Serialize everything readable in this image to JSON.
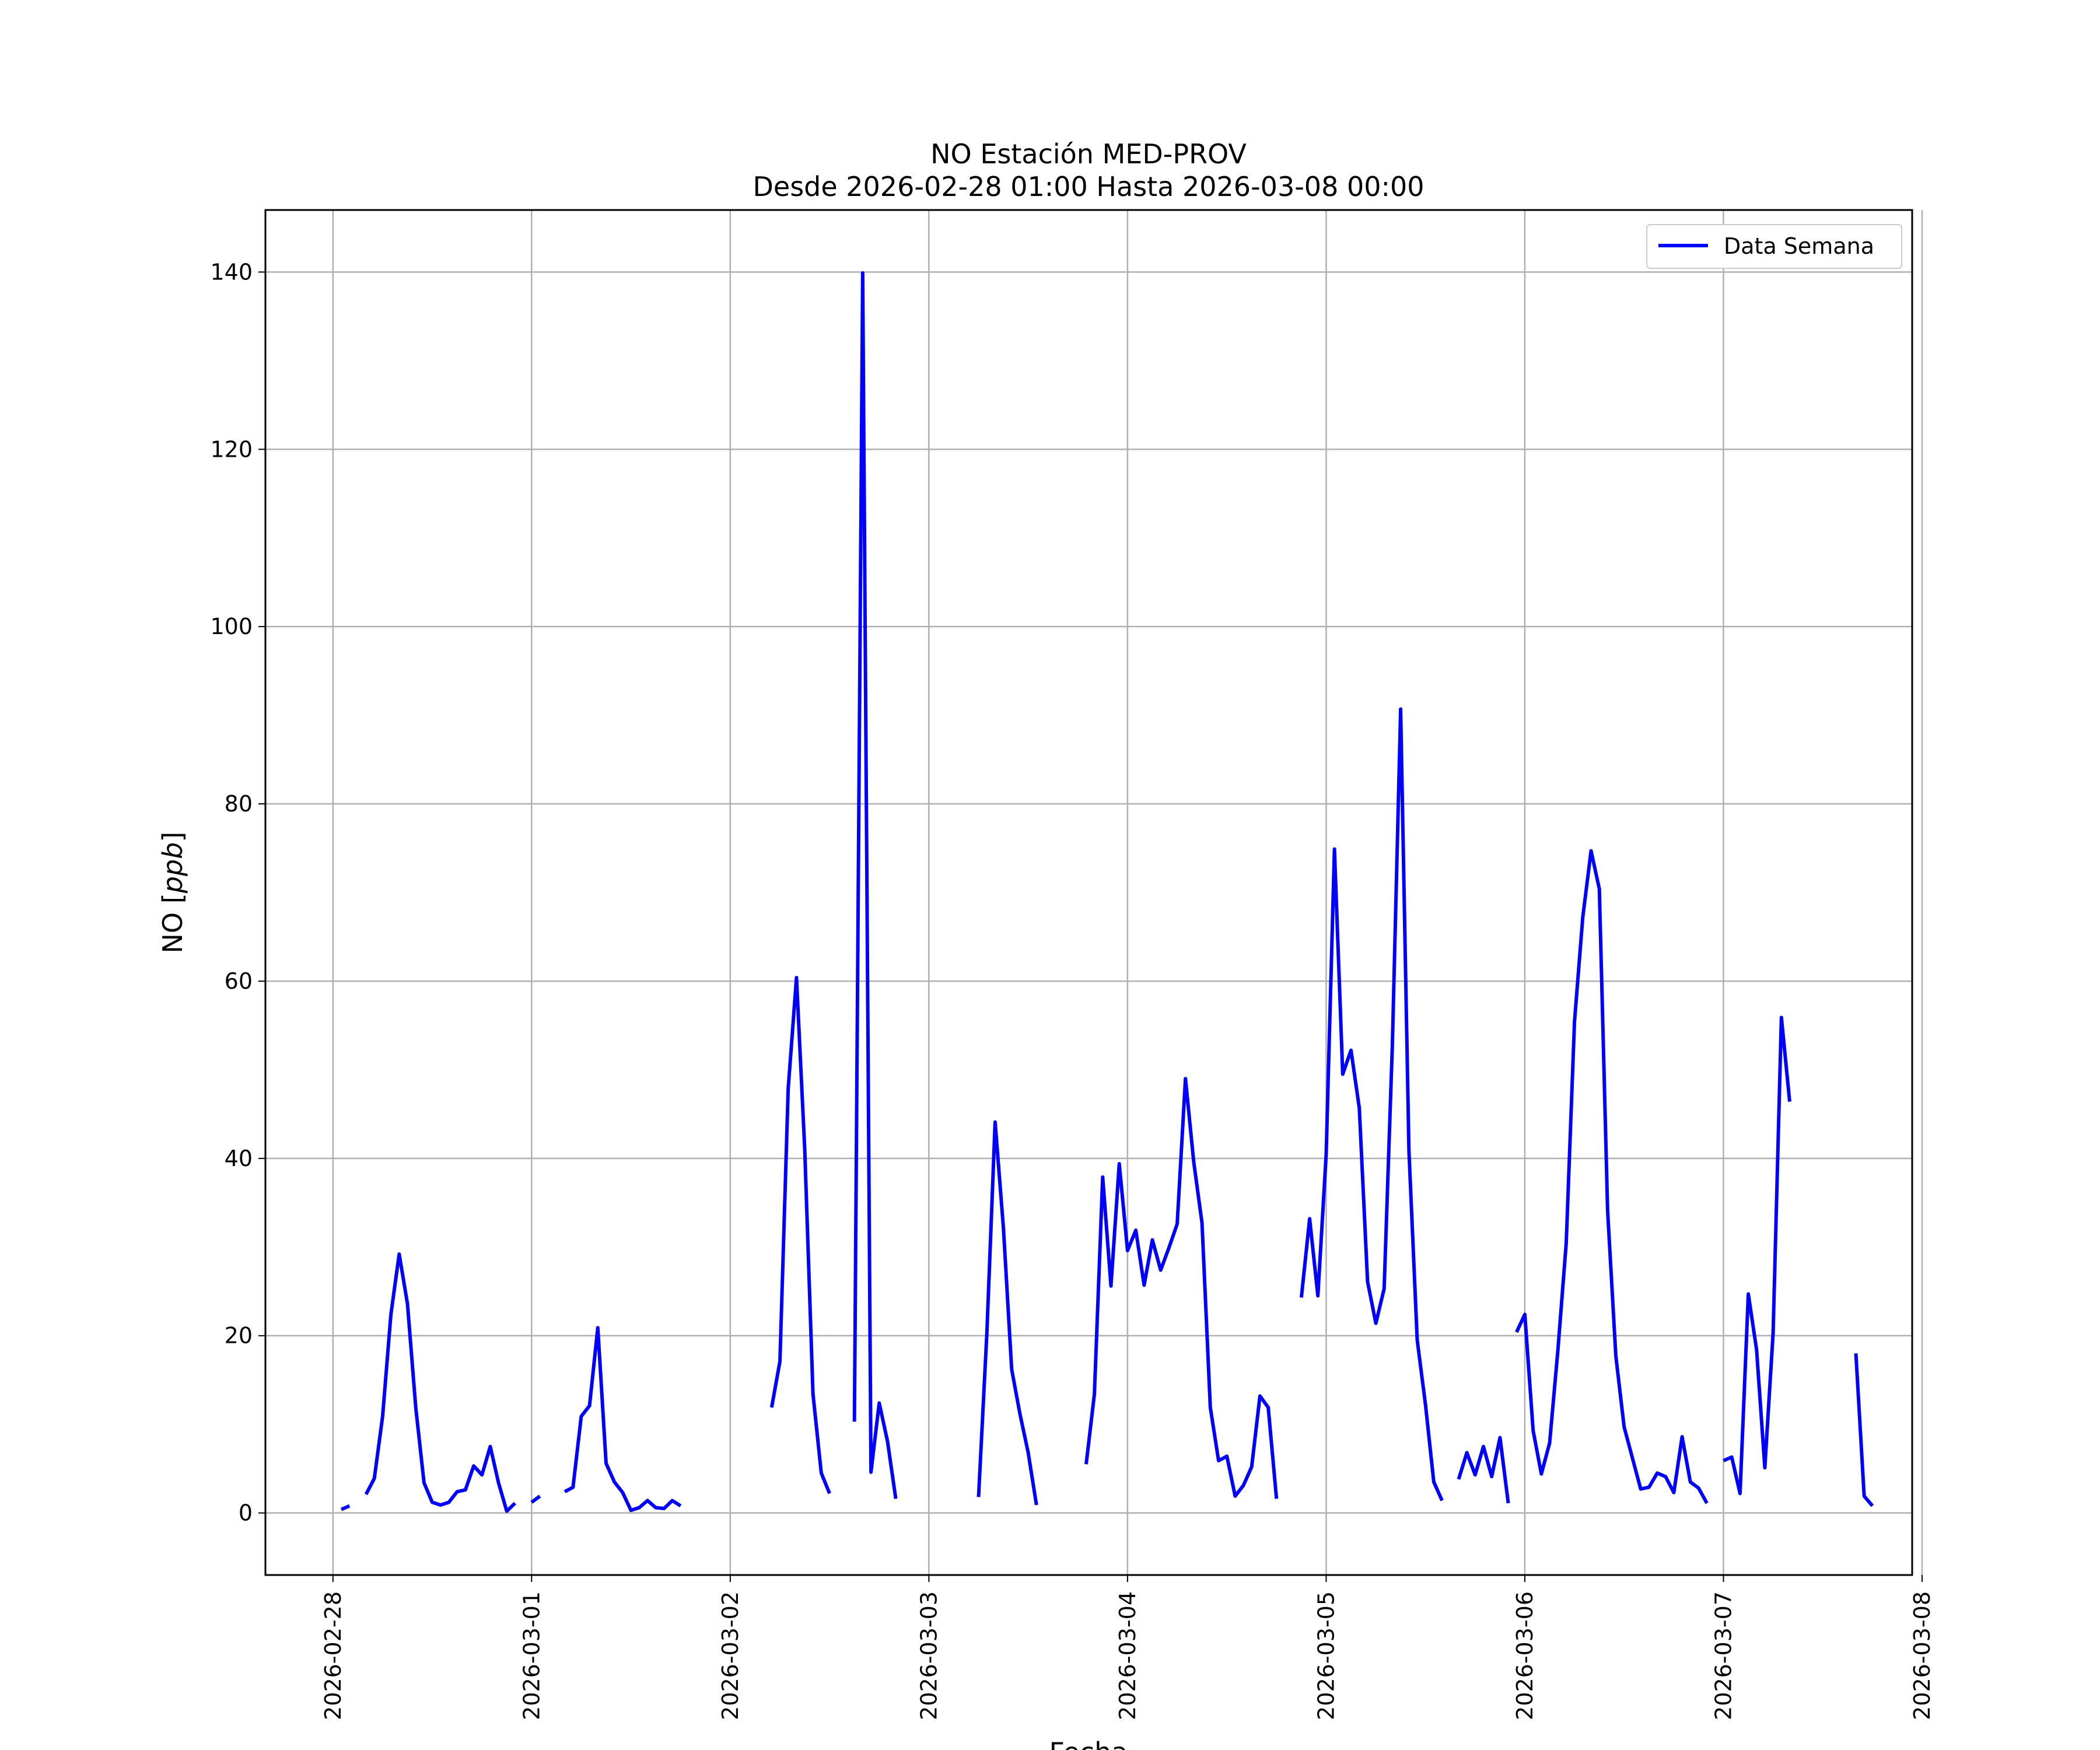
{
  "chart_data": {
    "type": "line",
    "title": "NO Estación MED-PROV",
    "subtitle": "Desde 2026-02-28 01:00 Hasta 2026-03-08 00:00",
    "xlabel": "Fecha",
    "ylabel": "NO [ppb]",
    "ylabel_prefix": "NO [",
    "ylabel_unit": "ppb",
    "ylabel_suffix": "]",
    "x_start": "2026-02-28",
    "xlim": [
      -0.34,
      7.95
    ],
    "ylim": [
      -7,
      147
    ],
    "x_ticks": [
      "2026-02-28",
      "2026-03-01",
      "2026-03-02",
      "2026-03-03",
      "2026-03-04",
      "2026-03-05",
      "2026-03-06",
      "2026-03-07",
      "2026-03-08"
    ],
    "y_ticks": [
      0,
      20,
      40,
      60,
      80,
      100,
      120,
      140
    ],
    "grid": true,
    "legend_position": "upper right",
    "series": [
      {
        "name": "Data Semana",
        "color": "#0000ff",
        "segments": [
          [
            [
              "2026-02-28 01:00",
              0.4
            ],
            [
              "2026-02-28 02:00",
              0.8
            ]
          ],
          [
            [
              "2026-02-28 04:00",
              2.1
            ],
            [
              "2026-02-28 05:00",
              3.9
            ],
            [
              "2026-02-28 06:00",
              10.9
            ],
            [
              "2026-02-28 07:00",
              22.4
            ],
            [
              "2026-02-28 08:00",
              29.2
            ],
            [
              "2026-02-28 09:00",
              23.6
            ],
            [
              "2026-02-28 10:00",
              11.9
            ],
            [
              "2026-02-28 11:00",
              3.4
            ],
            [
              "2026-02-28 12:00",
              1.2
            ],
            [
              "2026-02-28 13:00",
              0.9
            ],
            [
              "2026-02-28 14:00",
              1.2
            ],
            [
              "2026-02-28 15:00",
              2.4
            ],
            [
              "2026-02-28 16:00",
              2.6
            ],
            [
              "2026-02-28 17:00",
              5.3
            ],
            [
              "2026-02-28 18:00",
              4.3
            ],
            [
              "2026-02-28 19:00",
              7.5
            ],
            [
              "2026-02-28 20:00",
              3.4
            ],
            [
              "2026-02-28 21:00",
              0.2
            ],
            [
              "2026-02-28 22:00",
              1.1
            ]
          ],
          [
            [
              "2026-03-01 00:00",
              1.2
            ],
            [
              "2026-03-01 01:00",
              1.9
            ]
          ],
          [
            [
              "2026-03-01 04:00",
              2.4
            ],
            [
              "2026-03-01 05:00",
              2.9
            ],
            [
              "2026-03-01 06:00",
              10.9
            ],
            [
              "2026-03-01 07:00",
              12.1
            ],
            [
              "2026-03-01 08:00",
              20.9
            ],
            [
              "2026-03-01 09:00",
              5.6
            ],
            [
              "2026-03-01 10:00",
              3.5
            ],
            [
              "2026-03-01 11:00",
              2.3
            ],
            [
              "2026-03-01 12:00",
              0.3
            ],
            [
              "2026-03-01 13:00",
              0.6
            ],
            [
              "2026-03-01 14:00",
              1.4
            ],
            [
              "2026-03-01 15:00",
              0.6
            ],
            [
              "2026-03-01 16:00",
              0.5
            ],
            [
              "2026-03-01 17:00",
              1.4
            ],
            [
              "2026-03-01 18:00",
              0.8
            ]
          ],
          [
            [
              "2026-03-02 05:00",
              11.9
            ],
            [
              "2026-03-02 06:00",
              17.1
            ],
            [
              "2026-03-02 07:00",
              47.9
            ],
            [
              "2026-03-02 08:00",
              60.4
            ],
            [
              "2026-03-02 09:00",
              41.1
            ],
            [
              "2026-03-02 10:00",
              13.4
            ],
            [
              "2026-03-02 11:00",
              4.5
            ],
            [
              "2026-03-02 12:00",
              2.2
            ]
          ],
          [
            [
              "2026-03-02 15:00",
              10.3
            ],
            [
              "2026-03-02 16:00",
              139.9
            ],
            [
              "2026-03-02 17:00",
              4.6
            ],
            [
              "2026-03-02 18:00",
              12.4
            ],
            [
              "2026-03-02 19:00",
              8.1
            ],
            [
              "2026-03-02 20:00",
              1.6
            ]
          ],
          [
            [
              "2026-03-03 06:00",
              1.8
            ],
            [
              "2026-03-03 07:00",
              20.2
            ],
            [
              "2026-03-03 08:00",
              44.1
            ],
            [
              "2026-03-03 09:00",
              32.2
            ],
            [
              "2026-03-03 10:00",
              16.2
            ],
            [
              "2026-03-03 11:00",
              11.2
            ],
            [
              "2026-03-03 12:00",
              6.8
            ],
            [
              "2026-03-03 13:00",
              0.9
            ]
          ],
          [
            [
              "2026-03-03 19:00",
              5.5
            ],
            [
              "2026-03-03 20:00",
              13.4
            ],
            [
              "2026-03-03 21:00",
              37.9
            ],
            [
              "2026-03-03 22:00",
              25.6
            ],
            [
              "2026-03-03 23:00",
              39.4
            ],
            [
              "2026-03-04 00:00",
              29.6
            ],
            [
              "2026-03-04 01:00",
              31.9
            ],
            [
              "2026-03-04 02:00",
              25.7
            ],
            [
              "2026-03-04 03:00",
              30.8
            ],
            [
              "2026-03-04 04:00",
              27.4
            ],
            [
              "2026-03-04 05:00",
              29.9
            ],
            [
              "2026-03-04 06:00",
              32.6
            ],
            [
              "2026-03-04 07:00",
              49.0
            ],
            [
              "2026-03-04 08:00",
              39.6
            ],
            [
              "2026-03-04 09:00",
              32.7
            ],
            [
              "2026-03-04 10:00",
              11.9
            ],
            [
              "2026-03-04 11:00",
              5.9
            ],
            [
              "2026-03-04 12:00",
              6.4
            ],
            [
              "2026-03-04 13:00",
              1.9
            ],
            [
              "2026-03-04 14:00",
              3.1
            ],
            [
              "2026-03-04 15:00",
              5.2
            ],
            [
              "2026-03-04 16:00",
              13.2
            ],
            [
              "2026-03-04 17:00",
              11.9
            ],
            [
              "2026-03-04 18:00",
              1.6
            ]
          ],
          [
            [
              "2026-03-04 21:00",
              24.3
            ],
            [
              "2026-03-04 22:00",
              33.2
            ],
            [
              "2026-03-04 23:00",
              24.5
            ],
            [
              "2026-03-05 00:00",
              40.4
            ],
            [
              "2026-03-05 01:00",
              74.9
            ],
            [
              "2026-03-05 02:00",
              49.5
            ],
            [
              "2026-03-05 03:00",
              52.2
            ],
            [
              "2026-03-05 04:00",
              45.7
            ],
            [
              "2026-03-05 05:00",
              26.1
            ],
            [
              "2026-03-05 06:00",
              21.4
            ],
            [
              "2026-03-05 07:00",
              25.3
            ],
            [
              "2026-03-05 08:00",
              52.8
            ],
            [
              "2026-03-05 09:00",
              90.7
            ],
            [
              "2026-03-05 10:00",
              40.9
            ],
            [
              "2026-03-05 11:00",
              19.5
            ],
            [
              "2026-03-05 12:00",
              12.2
            ],
            [
              "2026-03-05 13:00",
              3.5
            ],
            [
              "2026-03-05 14:00",
              1.4
            ]
          ],
          [
            [
              "2026-03-05 16:00",
              3.8
            ],
            [
              "2026-03-05 17:00",
              6.8
            ],
            [
              "2026-03-05 18:00",
              4.3
            ],
            [
              "2026-03-05 19:00",
              7.5
            ],
            [
              "2026-03-05 20:00",
              4.1
            ],
            [
              "2026-03-05 21:00",
              8.5
            ],
            [
              "2026-03-05 22:00",
              1.1
            ]
          ],
          [
            [
              "2026-03-05 23:00",
              20.4
            ],
            [
              "2026-03-06 00:00",
              22.4
            ],
            [
              "2026-03-06 01:00",
              9.3
            ],
            [
              "2026-03-06 02:00",
              4.4
            ],
            [
              "2026-03-06 03:00",
              7.9
            ],
            [
              "2026-03-06 04:00",
              18.4
            ],
            [
              "2026-03-06 05:00",
              30.4
            ],
            [
              "2026-03-06 06:00",
              55.4
            ],
            [
              "2026-03-06 07:00",
              67.2
            ],
            [
              "2026-03-06 08:00",
              74.7
            ],
            [
              "2026-03-06 09:00",
              70.4
            ],
            [
              "2026-03-06 10:00",
              34.1
            ],
            [
              "2026-03-06 11:00",
              17.7
            ],
            [
              "2026-03-06 12:00",
              9.7
            ],
            [
              "2026-03-06 13:00",
              6.2
            ],
            [
              "2026-03-06 14:00",
              2.7
            ],
            [
              "2026-03-06 15:00",
              2.9
            ],
            [
              "2026-03-06 16:00",
              4.5
            ],
            [
              "2026-03-06 17:00",
              4.1
            ],
            [
              "2026-03-06 18:00",
              2.3
            ],
            [
              "2026-03-06 19:00",
              8.6
            ],
            [
              "2026-03-06 20:00",
              3.5
            ],
            [
              "2026-03-06 21:00",
              2.8
            ],
            [
              "2026-03-06 22:00",
              1.1
            ]
          ],
          [
            [
              "2026-03-07 00:00",
              5.9
            ],
            [
              "2026-03-07 01:00",
              6.3
            ],
            [
              "2026-03-07 02:00",
              2.2
            ],
            [
              "2026-03-07 03:00",
              24.7
            ],
            [
              "2026-03-07 04:00",
              18.4
            ],
            [
              "2026-03-07 05:00",
              5.1
            ],
            [
              "2026-03-07 06:00",
              20.3
            ],
            [
              "2026-03-07 07:00",
              55.9
            ],
            [
              "2026-03-07 08:00",
              46.4
            ]
          ],
          [
            [
              "2026-03-07 16:00",
              18.0
            ],
            [
              "2026-03-07 17:00",
              1.9
            ],
            [
              "2026-03-07 18:00",
              0.8
            ]
          ]
        ]
      }
    ]
  }
}
